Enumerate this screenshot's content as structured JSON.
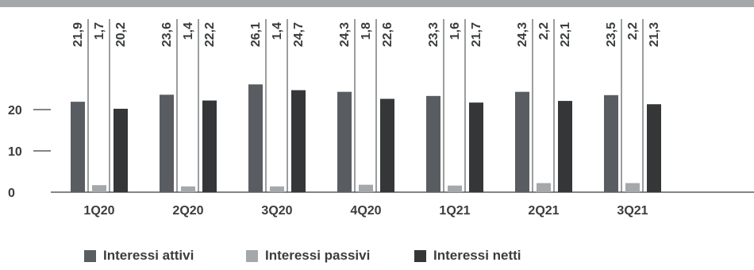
{
  "chart_data": {
    "type": "bar",
    "categories": [
      "1Q20",
      "2Q20",
      "3Q20",
      "4Q20",
      "1Q21",
      "2Q21",
      "3Q21"
    ],
    "series": [
      {
        "name": "Interessi attivi",
        "values": [
          21.9,
          23.6,
          26.1,
          24.3,
          23.3,
          24.3,
          23.5
        ],
        "labels": [
          "21,9",
          "23,6",
          "26,1",
          "24,3",
          "23,3",
          "24,3",
          "23,5"
        ],
        "color": "#595d62"
      },
      {
        "name": "Interessi passivi",
        "values": [
          1.7,
          1.4,
          1.4,
          1.8,
          1.6,
          2.2,
          2.2
        ],
        "labels": [
          "1,7",
          "1,4",
          "1,4",
          "1,8",
          "1,6",
          "2,2",
          "2,2"
        ],
        "color": "#a5a8ab"
      },
      {
        "name": "Interessi netti",
        "values": [
          20.2,
          22.2,
          24.7,
          22.6,
          21.7,
          22.1,
          21.3
        ],
        "labels": [
          "20,2",
          "22,2",
          "24,7",
          "22,6",
          "21,7",
          "22,1",
          "21,3"
        ],
        "color": "#343638"
      }
    ],
    "yticks": [
      0,
      10,
      20
    ],
    "ytick_labels": [
      "0",
      "10",
      "20"
    ],
    "ylim": [
      0,
      27
    ],
    "legend_position": "bottom-center",
    "grid": false,
    "colors": {
      "top_band": "#a5a8ab",
      "text": "#3a3c3e",
      "axis": "#3a3c3e",
      "separator": "#3a3c3e"
    }
  },
  "legend": {
    "items": [
      {
        "label": "Interessi attivi",
        "color": "#595d62"
      },
      {
        "label": "Interessi passivi",
        "color": "#a5a8ab"
      },
      {
        "label": "Interessi netti",
        "color": "#343638"
      }
    ]
  }
}
